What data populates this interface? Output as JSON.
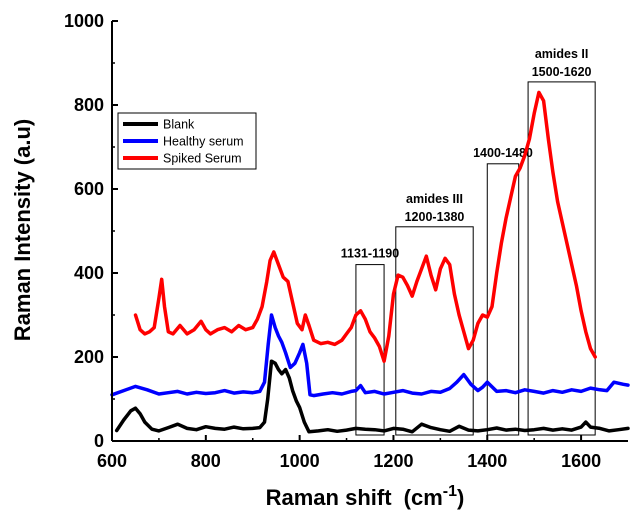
{
  "chart_data": {
    "type": "line",
    "title": "",
    "xlabel": "Raman shift",
    "xlabel_unit": "(cm",
    "xlabel_exp": "-1",
    "xlabel_close": ")",
    "ylabel": "Raman Intensity (a.u)",
    "xlim": [
      600,
      1700
    ],
    "ylim": [
      0,
      1000
    ],
    "xticks": [
      600,
      800,
      1000,
      1200,
      1400,
      1600
    ],
    "yticks": [
      0,
      200,
      400,
      600,
      800,
      1000
    ],
    "grid": false,
    "legend_position": "upper-left",
    "series": [
      {
        "name": "Blank",
        "color": "#000000",
        "x": [
          610,
          625,
          640,
          650,
          660,
          670,
          685,
          700,
          720,
          740,
          760,
          780,
          800,
          820,
          840,
          860,
          880,
          900,
          915,
          925,
          932,
          940,
          948,
          955,
          962,
          970,
          978,
          985,
          993,
          1000,
          1010,
          1020,
          1040,
          1060,
          1080,
          1100,
          1120,
          1140,
          1160,
          1180,
          1200,
          1220,
          1240,
          1260,
          1280,
          1300,
          1320,
          1340,
          1360,
          1380,
          1400,
          1420,
          1440,
          1460,
          1480,
          1500,
          1520,
          1540,
          1560,
          1580,
          1600,
          1610,
          1620,
          1640,
          1660,
          1680,
          1700
        ],
        "y": [
          25,
          50,
          72,
          78,
          65,
          45,
          28,
          24,
          32,
          40,
          30,
          27,
          34,
          30,
          28,
          33,
          29,
          30,
          32,
          45,
          100,
          190,
          185,
          170,
          160,
          170,
          150,
          120,
          95,
          80,
          45,
          22,
          24,
          27,
          23,
          26,
          30,
          28,
          27,
          24,
          30,
          28,
          22,
          40,
          32,
          27,
          23,
          35,
          26,
          24,
          27,
          31,
          26,
          28,
          25,
          27,
          30,
          26,
          29,
          26,
          33,
          45,
          33,
          30,
          24,
          27,
          30
        ]
      },
      {
        "name": "Healthy serum",
        "color": "#0000ff",
        "x": [
          600,
          625,
          650,
          675,
          700,
          720,
          740,
          760,
          780,
          800,
          820,
          840,
          860,
          880,
          900,
          915,
          925,
          933,
          940,
          948,
          955,
          962,
          970,
          980,
          990,
          1000,
          1007,
          1015,
          1022,
          1030,
          1050,
          1070,
          1090,
          1110,
          1120,
          1130,
          1140,
          1160,
          1180,
          1200,
          1220,
          1240,
          1260,
          1280,
          1300,
          1320,
          1335,
          1350,
          1365,
          1380,
          1390,
          1400,
          1420,
          1440,
          1460,
          1480,
          1500,
          1520,
          1540,
          1560,
          1580,
          1600,
          1620,
          1640,
          1655,
          1670,
          1690,
          1700
        ],
        "y": [
          110,
          120,
          130,
          122,
          112,
          115,
          118,
          112,
          116,
          113,
          115,
          120,
          114,
          117,
          115,
          118,
          140,
          230,
          300,
          270,
          250,
          235,
          210,
          175,
          185,
          210,
          230,
          185,
          110,
          108,
          112,
          115,
          112,
          118,
          120,
          132,
          115,
          118,
          112,
          116,
          120,
          114,
          112,
          118,
          116,
          125,
          140,
          158,
          135,
          120,
          128,
          140,
          118,
          120,
          115,
          122,
          118,
          114,
          120,
          116,
          122,
          118,
          126,
          122,
          120,
          140,
          135,
          133
        ]
      },
      {
        "name": "Spiked Serum",
        "color": "#ff0000",
        "x": [
          650,
          660,
          670,
          680,
          690,
          700,
          706,
          712,
          720,
          730,
          745,
          760,
          775,
          790,
          800,
          810,
          825,
          840,
          855,
          870,
          885,
          900,
          910,
          920,
          930,
          937,
          945,
          955,
          965,
          975,
          985,
          995,
          1005,
          1012,
          1020,
          1030,
          1045,
          1060,
          1075,
          1090,
          1100,
          1110,
          1120,
          1130,
          1140,
          1150,
          1160,
          1170,
          1180,
          1190,
          1200,
          1210,
          1220,
          1230,
          1240,
          1250,
          1260,
          1270,
          1280,
          1290,
          1300,
          1310,
          1320,
          1330,
          1340,
          1350,
          1360,
          1370,
          1380,
          1390,
          1400,
          1410,
          1420,
          1430,
          1440,
          1450,
          1460,
          1470,
          1480,
          1490,
          1500,
          1510,
          1520,
          1530,
          1540,
          1550,
          1560,
          1570,
          1580,
          1590,
          1600,
          1610,
          1620,
          1630
        ],
        "y": [
          300,
          265,
          255,
          260,
          270,
          340,
          385,
          320,
          260,
          255,
          275,
          255,
          265,
          285,
          265,
          255,
          265,
          270,
          260,
          275,
          265,
          270,
          290,
          320,
          380,
          430,
          450,
          420,
          390,
          380,
          330,
          280,
          265,
          300,
          275,
          240,
          232,
          235,
          230,
          240,
          255,
          270,
          300,
          310,
          290,
          260,
          245,
          225,
          190,
          250,
          350,
          395,
          390,
          370,
          345,
          380,
          410,
          440,
          395,
          360,
          410,
          435,
          420,
          350,
          300,
          260,
          220,
          240,
          280,
          300,
          295,
          320,
          400,
          470,
          530,
          580,
          630,
          650,
          680,
          720,
          780,
          830,
          810,
          720,
          640,
          570,
          520,
          470,
          420,
          370,
          310,
          260,
          220,
          200
        ]
      }
    ],
    "annotations": [
      {
        "label1": "1131-1190",
        "label2": "",
        "x0": 1120,
        "x1": 1180,
        "ytop": 420
      },
      {
        "label1": "amides III",
        "label2": "1200-1380",
        "x0": 1205,
        "x1": 1370,
        "ytop": 510
      },
      {
        "label1": "1400-1480",
        "label2": "",
        "x0": 1400,
        "x1": 1467,
        "ytop": 660
      },
      {
        "label1": "amides II",
        "label2": "1500-1620",
        "x0": 1487,
        "x1": 1630,
        "ytop": 855
      }
    ]
  }
}
